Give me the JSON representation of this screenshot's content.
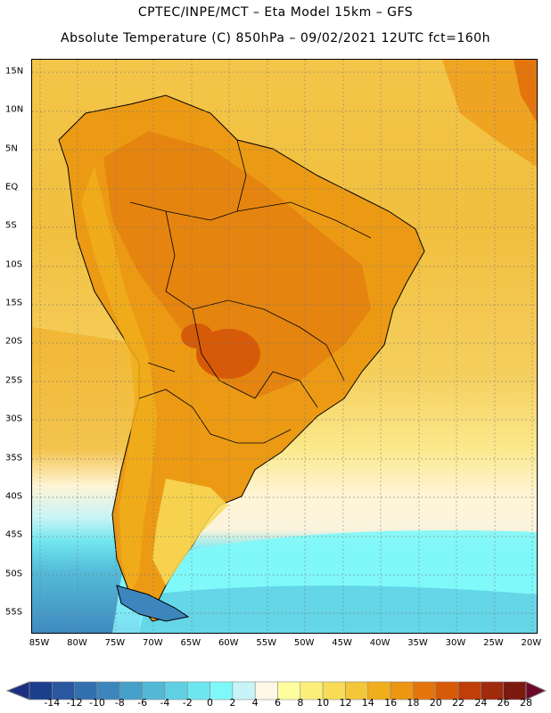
{
  "title_line1": "CPTEC/INPE/MCT –  Eta Model 15km – GFS",
  "title_line2": "Absolute Temperature (C) 850hPa – 09/02/2021 12UTC fct=160h",
  "map": {
    "lat_labels": [
      "15N",
      "10N",
      "5N",
      "EQ",
      "5S",
      "10S",
      "15S",
      "20S",
      "25S",
      "30S",
      "35S",
      "40S",
      "45S",
      "50S",
      "55S"
    ],
    "lon_labels": [
      "85W",
      "80W",
      "75W",
      "70W",
      "65W",
      "60W",
      "55W",
      "50W",
      "45W",
      "40W",
      "35W",
      "30W",
      "25W",
      "20W"
    ],
    "lat_values": [
      15,
      10,
      5,
      0,
      -5,
      -10,
      -15,
      -20,
      -25,
      -30,
      -35,
      -40,
      -45,
      -50,
      -55
    ],
    "lon_values": [
      -85,
      -80,
      -75,
      -70,
      -65,
      -60,
      -55,
      -50,
      -45,
      -40,
      -35,
      -30,
      -25,
      -20
    ],
    "grid": "dotted"
  },
  "colorbar": {
    "labels": [
      "-14",
      "-12",
      "-10",
      "-8",
      "-6",
      "-4",
      "-2",
      "0",
      "2",
      "4",
      "6",
      "8",
      "10",
      "12",
      "14",
      "16",
      "18",
      "20",
      "22",
      "24",
      "26",
      "28"
    ],
    "colors": [
      "#1c3f8c",
      "#2a57a0",
      "#3370b0",
      "#3c86bd",
      "#46a0c9",
      "#52b8d6",
      "#5fd0e4",
      "#6ee6f0",
      "#7ff8fa",
      "#c8f4f8",
      "#fff8e6",
      "#ffffa0",
      "#fbef7a",
      "#f8dc58",
      "#f4c63a",
      "#f1ae1c",
      "#ec9612",
      "#e4740c",
      "#d65a08",
      "#c03e08",
      "#a02a0c",
      "#7c1a10"
    ],
    "low_color": "#1c2f80",
    "high_color": "#6a0a2a"
  }
}
